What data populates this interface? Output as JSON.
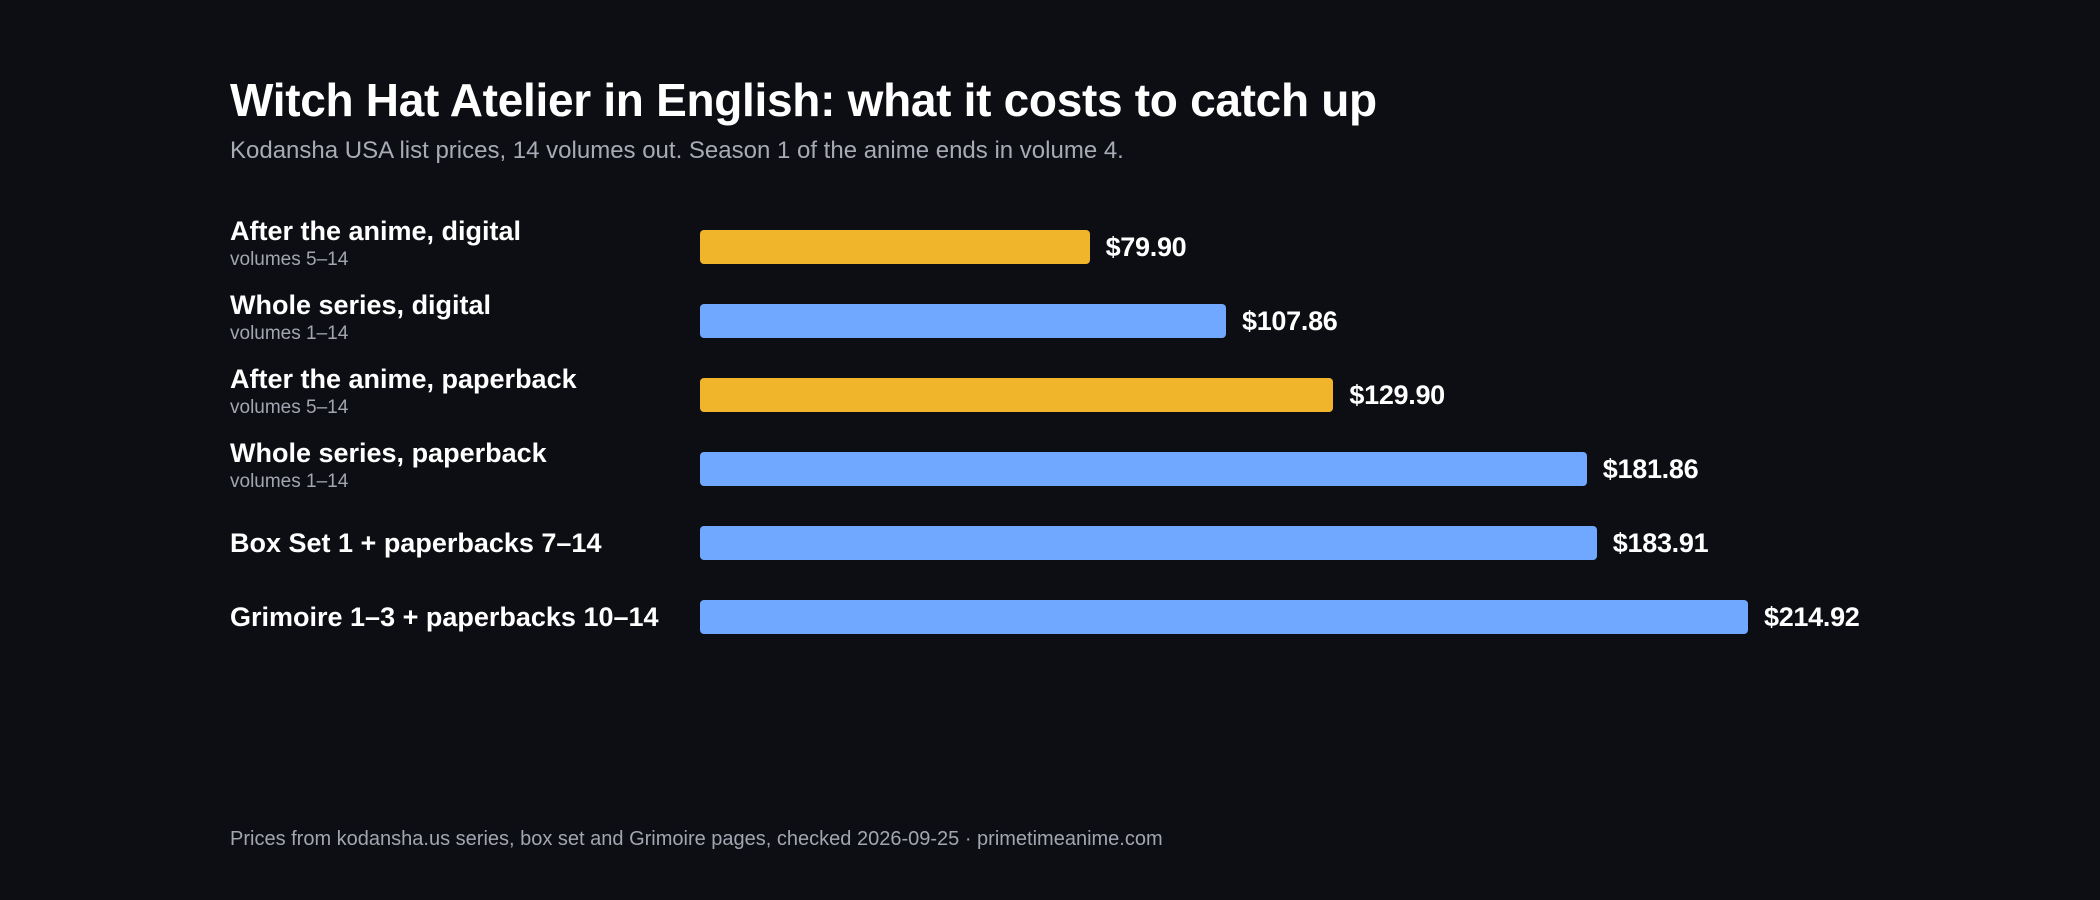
{
  "title": "Witch Hat Atelier in English: what it costs to catch up",
  "subtitle": "Kodansha USA list prices, 14 volumes out. Season 1 of the anime ends in volume 4.",
  "footer": "Prices from kodansha.us series, box set and Grimoire pages, checked 2026-09-25 · primetimeanime.com",
  "colors": {
    "background": "#0d0e13",
    "after_anime": "#f0b52b",
    "whole_series": "#6fa8fe"
  },
  "chart_data": {
    "type": "bar",
    "orientation": "horizontal",
    "value_prefix": "$",
    "xlim": [
      0,
      214.92
    ],
    "grid": false,
    "bars": [
      {
        "label": "After the anime, digital",
        "sublabel": "volumes 5–14",
        "value": 79.9,
        "value_label": "$79.90",
        "color": "#f0b52b"
      },
      {
        "label": "Whole series, digital",
        "sublabel": "volumes 1–14",
        "value": 107.86,
        "value_label": "$107.86",
        "color": "#6fa8fe"
      },
      {
        "label": "After the anime, paperback",
        "sublabel": "volumes 5–14",
        "value": 129.9,
        "value_label": "$129.90",
        "color": "#f0b52b"
      },
      {
        "label": "Whole series, paperback",
        "sublabel": "volumes 1–14",
        "value": 181.86,
        "value_label": "$181.86",
        "color": "#6fa8fe"
      },
      {
        "label": "Box Set 1 + paperbacks 7–14",
        "sublabel": "",
        "value": 183.91,
        "value_label": "$183.91",
        "color": "#6fa8fe"
      },
      {
        "label": "Grimoire 1–3 + paperbacks 10–14",
        "sublabel": "",
        "value": 214.92,
        "value_label": "$214.92",
        "color": "#6fa8fe"
      }
    ]
  }
}
